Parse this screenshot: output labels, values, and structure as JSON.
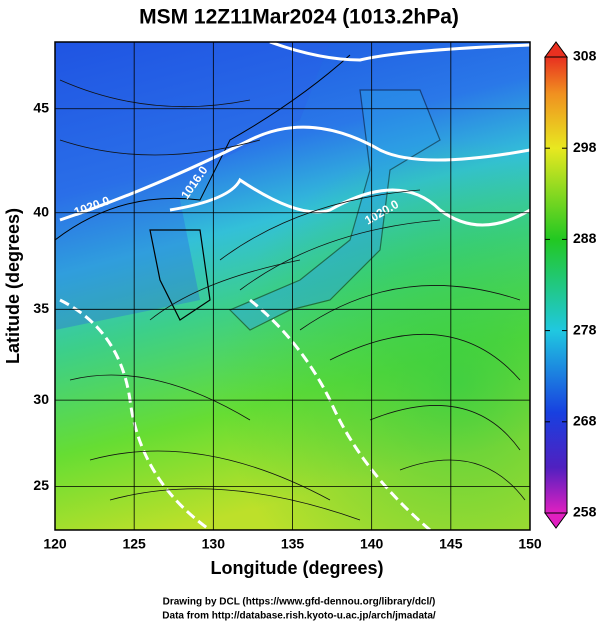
{
  "title": "MSM 12Z11Mar2024 (1013.2hPa)",
  "map": {
    "projection": "mercator",
    "xlim": [
      120,
      150
    ],
    "ylim": [
      22.4,
      48
    ],
    "xticks": [
      120,
      125,
      130,
      135,
      140,
      145,
      150
    ],
    "yticks": [
      25,
      30,
      35,
      40,
      45
    ],
    "grid": true,
    "x_label": "Longitude (degrees)",
    "y_label": "Latitude  (degrees)",
    "contour_labels": [
      "1016.0",
      "1020.0",
      "1020.0"
    ]
  },
  "colorbar": {
    "lim": [
      258,
      308
    ],
    "ticks": [
      258,
      268,
      278,
      288,
      298,
      308
    ]
  },
  "credits": [
    "Drawing by DCL (https://www.gfd-dennou.org/library/dcl/)",
    "Data from http://database.rish.kyoto-u.ac.jp/arch/jmadata/"
  ]
}
